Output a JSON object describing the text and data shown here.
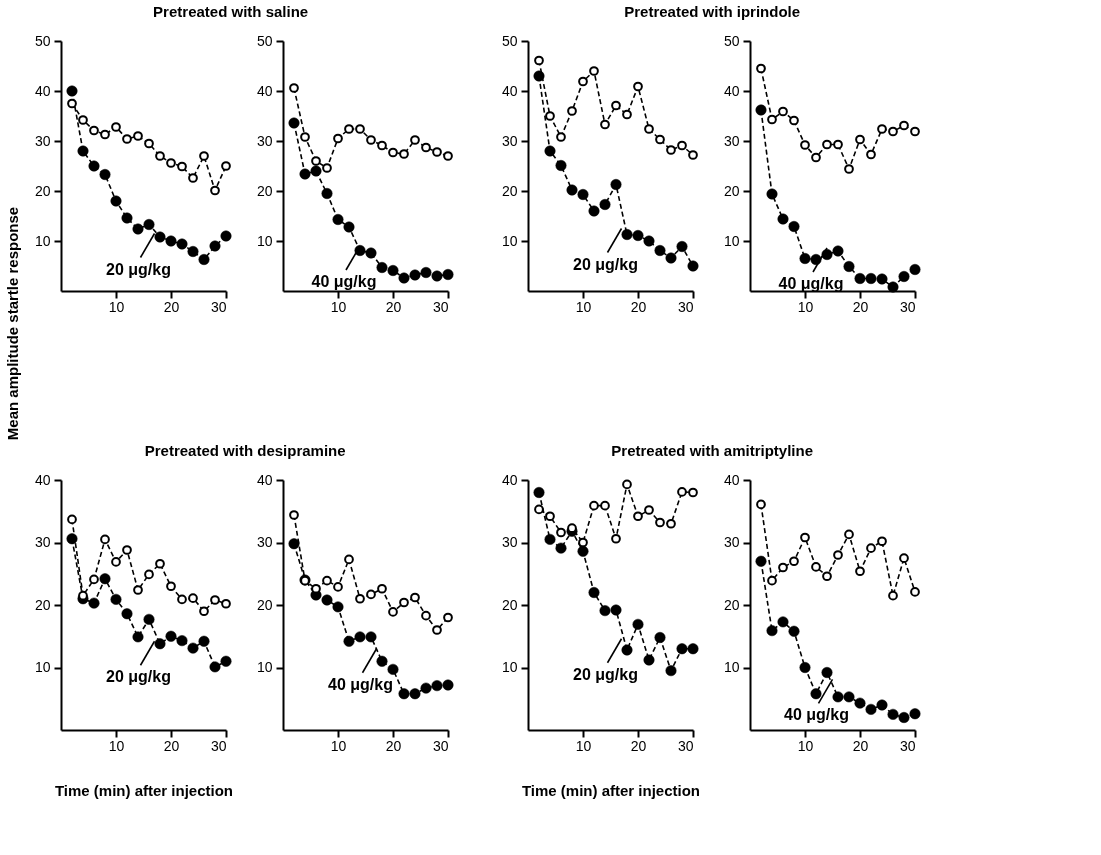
{
  "chart_data": [
    {
      "type": "line",
      "title": "Pretreated with saline",
      "ylabel": "Mean amplitude startle response",
      "x": [
        2,
        4,
        6,
        8,
        10,
        12,
        14,
        16,
        18,
        20,
        22,
        24,
        26,
        28,
        30
      ],
      "xlim": [
        0,
        30
      ],
      "xticks": [
        10,
        20,
        30
      ],
      "ylim": [
        0,
        50
      ],
      "yticks": [
        10,
        20,
        30,
        40,
        50
      ],
      "marker": "circle",
      "grid": false,
      "series": [
        {
          "color": "#000000",
          "line_style": "dashed",
          "values": [
            40,
            28,
            25,
            23.3,
            18,
            14.6,
            12.4,
            13.3,
            10.8,
            10,
            9.4,
            7.9,
            6.3,
            9,
            11
          ]
        },
        {
          "color": "#000000",
          "line_style": "dashed",
          "values": [
            37.5,
            34.2,
            32.1,
            31.3,
            32.8,
            30.4,
            31,
            29.5,
            27,
            25.6,
            24.9,
            22.6,
            27,
            20.1,
            25
          ]
        }
      ],
      "annotations": [
        {
          "text": "20 μg/kg",
          "x": 17,
          "y": 11.5
        }
      ]
    },
    {
      "type": "line",
      "x": [
        2,
        4,
        6,
        8,
        10,
        12,
        14,
        16,
        18,
        20,
        22,
        24,
        26,
        28,
        30
      ],
      "xlim": [
        0,
        30
      ],
      "xticks": [
        10,
        20,
        30
      ],
      "ylim": [
        0,
        50
      ],
      "yticks": [
        10,
        20,
        30,
        40,
        50
      ],
      "marker": "circle",
      "grid": false,
      "series": [
        {
          "color": "#000000",
          "line_style": "dashed",
          "values": [
            33.6,
            23.4,
            24,
            19.5,
            14.3,
            12.8,
            8.1,
            7.6,
            4.7,
            4.1,
            2.6,
            3.2,
            3.7,
            3,
            3.3
          ]
        },
        {
          "color": "#000000",
          "line_style": "dashed",
          "values": [
            40.6,
            30.8,
            26,
            24.6,
            30.5,
            32.4,
            32.4,
            30.2,
            29.1,
            27.7,
            27.4,
            30.2,
            28.7,
            27.8,
            27
          ]
        }
      ],
      "annotations": [
        {
          "text": "40 μg/kg",
          "x": 14,
          "y": 9
        }
      ]
    },
    {
      "type": "line",
      "title": "Pretreated with iprindole",
      "x": [
        2,
        4,
        6,
        8,
        10,
        12,
        14,
        16,
        18,
        20,
        22,
        24,
        26,
        28,
        30
      ],
      "xlim": [
        0,
        30
      ],
      "xticks": [
        10,
        20,
        30
      ],
      "ylim": [
        0,
        50
      ],
      "yticks": [
        10,
        20,
        30,
        40,
        50
      ],
      "marker": "circle",
      "grid": false,
      "series": [
        {
          "color": "#000000",
          "line_style": "dashed",
          "values": [
            43,
            28,
            25.1,
            20.2,
            19.3,
            16,
            17.3,
            21.3,
            11.3,
            11.1,
            10,
            8.1,
            6.6,
            8.9,
            5
          ]
        },
        {
          "color": "#000000",
          "line_style": "dashed",
          "values": [
            46.1,
            35,
            30.8,
            36,
            41.9,
            44,
            33.3,
            37.1,
            35.3,
            40.9,
            32.4,
            30.3,
            28.2,
            29.1,
            27.2
          ]
        }
      ],
      "annotations": [
        {
          "text": "20 μg/kg",
          "x": 17,
          "y": 12.5
        }
      ]
    },
    {
      "type": "line",
      "x": [
        2,
        4,
        6,
        8,
        10,
        12,
        14,
        16,
        18,
        20,
        22,
        24,
        26,
        28,
        30
      ],
      "xlim": [
        0,
        30
      ],
      "xticks": [
        10,
        20,
        30
      ],
      "ylim": [
        0,
        50
      ],
      "yticks": [
        10,
        20,
        30,
        40,
        50
      ],
      "marker": "circle",
      "grid": false,
      "series": [
        {
          "color": "#000000",
          "line_style": "dashed",
          "values": [
            36.2,
            19.4,
            14.4,
            12.9,
            6.5,
            6.3,
            7.3,
            8,
            4.9,
            2.5,
            2.5,
            2.4,
            0.8,
            2.9,
            4.3
          ]
        },
        {
          "color": "#000000",
          "line_style": "dashed",
          "values": [
            44.5,
            34.3,
            35.9,
            34.1,
            29.2,
            26.7,
            29.3,
            29.3,
            24.4,
            30.3,
            27.3,
            32.4,
            31.9,
            33.1,
            31.9
          ]
        }
      ],
      "annotations": [
        {
          "text": "40 μg/kg",
          "x": 14,
          "y": 8.6
        }
      ]
    },
    {
      "type": "line",
      "title": "Pretreated with desipramine",
      "xlabel": "Time (min) after injection",
      "x": [
        2,
        4,
        6,
        8,
        10,
        12,
        14,
        16,
        18,
        20,
        22,
        24,
        26,
        28,
        30
      ],
      "xlim": [
        0,
        30
      ],
      "xticks": [
        10,
        20,
        30
      ],
      "ylim": [
        0,
        40
      ],
      "yticks": [
        10,
        20,
        30,
        40
      ],
      "marker": "circle",
      "grid": false,
      "series": [
        {
          "color": "#000000",
          "line_style": "dashed",
          "values": [
            30.6,
            21,
            20.3,
            24.2,
            20.9,
            18.6,
            14.9,
            17.7,
            13.8,
            15,
            14.3,
            13.1,
            14.2,
            10.1,
            11
          ]
        },
        {
          "color": "#000000",
          "line_style": "dashed",
          "values": [
            33.7,
            21.5,
            24.1,
            30.5,
            26.9,
            28.8,
            22.4,
            24.9,
            26.6,
            23,
            20.9,
            21.1,
            19,
            20.8,
            20.2
          ]
        }
      ],
      "annotations": [
        {
          "text": "20 μg/kg",
          "x": 17,
          "y": 14.2
        }
      ]
    },
    {
      "type": "line",
      "x": [
        2,
        4,
        6,
        8,
        10,
        12,
        14,
        16,
        18,
        20,
        22,
        24,
        26,
        28,
        30
      ],
      "xlim": [
        0,
        30
      ],
      "xticks": [
        10,
        20,
        30
      ],
      "ylim": [
        0,
        40
      ],
      "yticks": [
        10,
        20,
        30,
        40
      ],
      "marker": "circle",
      "grid": false,
      "series": [
        {
          "color": "#000000",
          "line_style": "dashed",
          "values": [
            29.8,
            24,
            21.6,
            20.8,
            19.7,
            14.2,
            14.9,
            14.9,
            11,
            9.7,
            5.8,
            5.8,
            6.7,
            7.1,
            7.2
          ]
        },
        {
          "color": "#000000",
          "line_style": "dashed",
          "values": [
            34.4,
            23.9,
            22.6,
            23.9,
            22.9,
            27.3,
            21,
            21.7,
            22.6,
            18.9,
            20.4,
            21.2,
            18.3,
            16,
            18
          ]
        }
      ],
      "annotations": [
        {
          "text": "40 μg/kg",
          "x": 17,
          "y": 13
        }
      ]
    },
    {
      "type": "line",
      "title": "Pretreated with amitriptyline",
      "xlabel": "Time (min) after injection",
      "x": [
        2,
        4,
        6,
        8,
        10,
        12,
        14,
        16,
        18,
        20,
        22,
        24,
        26,
        28,
        30
      ],
      "xlim": [
        0,
        30
      ],
      "xticks": [
        10,
        20,
        30
      ],
      "ylim": [
        0,
        40
      ],
      "yticks": [
        10,
        20,
        30,
        40
      ],
      "marker": "circle",
      "grid": false,
      "series": [
        {
          "color": "#000000",
          "line_style": "dashed",
          "values": [
            38,
            30.5,
            29.1,
            31.8,
            28.6,
            22,
            19.1,
            19.2,
            12.8,
            16.9,
            11.2,
            14.8,
            9.5,
            13,
            13
          ]
        },
        {
          "color": "#000000",
          "line_style": "dashed",
          "values": [
            35.3,
            34.2,
            31.6,
            32.3,
            30,
            35.9,
            35.9,
            30.6,
            39.3,
            34.2,
            35.2,
            33.2,
            33,
            38.1,
            38
          ]
        }
      ],
      "annotations": [
        {
          "text": "20 μg/kg",
          "x": 17,
          "y": 14.6
        }
      ]
    },
    {
      "type": "line",
      "x": [
        2,
        4,
        6,
        8,
        10,
        12,
        14,
        16,
        18,
        20,
        22,
        24,
        26,
        28,
        30
      ],
      "xlim": [
        0,
        30
      ],
      "xticks": [
        10,
        20,
        30
      ],
      "ylim": [
        0,
        40
      ],
      "yticks": [
        10,
        20,
        30,
        40
      ],
      "marker": "circle",
      "grid": false,
      "series": [
        {
          "color": "#000000",
          "line_style": "dashed",
          "values": [
            27,
            15.9,
            17.3,
            15.8,
            10,
            5.8,
            9.2,
            5.3,
            5.3,
            4.3,
            3.3,
            4,
            2.5,
            2,
            2.6
          ]
        },
        {
          "color": "#000000",
          "line_style": "dashed",
          "values": [
            36.1,
            23.9,
            26,
            27,
            30.8,
            26.1,
            24.6,
            28,
            31.3,
            25.4,
            29.1,
            30.2,
            21.5,
            27.5,
            22.1
          ]
        }
      ],
      "annotations": [
        {
          "text": "40 μg/kg",
          "x": 15,
          "y": 8.1
        }
      ]
    }
  ]
}
